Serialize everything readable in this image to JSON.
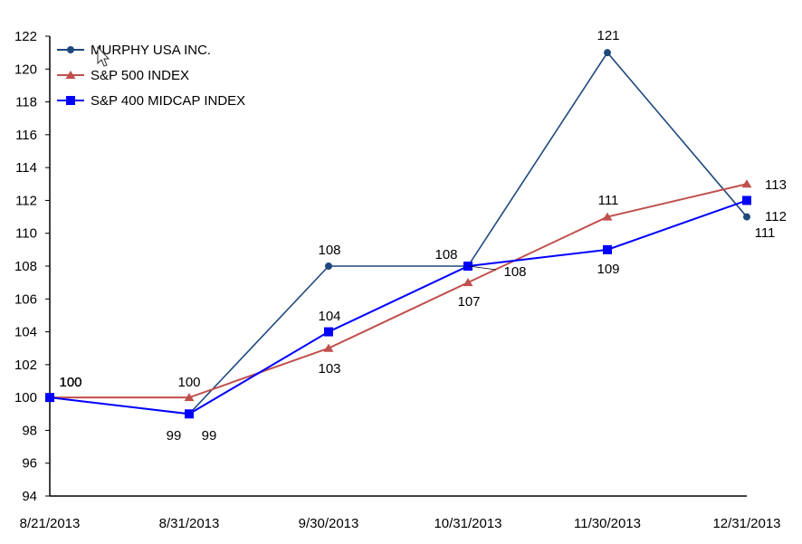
{
  "chart_data": {
    "type": "line",
    "title": "",
    "xlabel": "",
    "ylabel": "",
    "ylim": [
      94,
      122
    ],
    "yticks": [
      94,
      96,
      98,
      100,
      102,
      104,
      106,
      108,
      110,
      112,
      114,
      116,
      118,
      120,
      122
    ],
    "grid": false,
    "legend_position": "top-left (inside plot)",
    "categories": [
      "8/21/2013",
      "8/31/2013",
      "9/30/2013",
      "10/31/2013",
      "11/30/2013",
      "12/31/2013"
    ],
    "series": [
      {
        "name": "MURPHY USA INC.",
        "color": "#1F497D",
        "marker": "circle",
        "values": [
          100,
          99,
          108,
          108,
          121,
          111
        ]
      },
      {
        "name": "S&P 500 INDEX",
        "color": "#C0504D",
        "marker": "triangle",
        "values": [
          100,
          100,
          103,
          107,
          111,
          113
        ]
      },
      {
        "name": "S&P 400 MIDCAP INDEX",
        "color": "#0000FF",
        "marker": "square",
        "values": [
          100,
          99,
          104,
          108,
          109,
          112
        ]
      }
    ],
    "data_labels": [
      {
        "series": "MURPHY USA INC.",
        "labels": [
          "100",
          "99",
          "108",
          "108",
          "121",
          "111"
        ]
      },
      {
        "series": "S&P 500 INDEX",
        "labels": [
          "100",
          "100",
          "103",
          "107",
          "111",
          "113"
        ]
      },
      {
        "series": "S&P 400 MIDCAP INDEX",
        "labels": [
          "100",
          "99",
          "104",
          "108",
          "109",
          "112"
        ]
      }
    ]
  }
}
